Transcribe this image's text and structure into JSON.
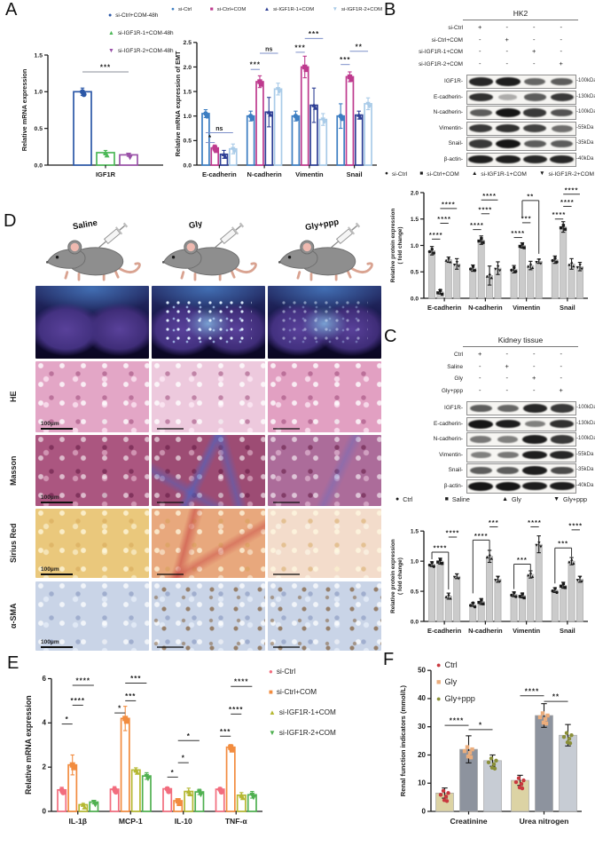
{
  "panels": {
    "a": "A",
    "b": "B",
    "c": "C",
    "d": "D",
    "e": "E",
    "f": "F"
  },
  "charts": {
    "a_left": {
      "type": "bar",
      "style": "hollow",
      "ylabel": "Relative mRNA  expression",
      "ylim": [
        0,
        1.5
      ],
      "yticks": [
        "0.0",
        "0.5",
        "1.0",
        "1.5"
      ],
      "categories": [
        "IGF1R"
      ],
      "series": [
        {
          "name": "si-Ctrl+COM-48h",
          "edge": "#2B57A7",
          "marker": "circle"
        },
        {
          "name": "si-IGF1R-1+COM-48h",
          "edge": "#4DB858",
          "marker": "triangle"
        },
        {
          "name": "si-IGF1R-2+COM-48h",
          "edge": "#9A52A8",
          "marker": "triangle-down"
        }
      ],
      "values": [
        [
          1.0
        ],
        [
          0.17
        ],
        [
          0.14
        ]
      ],
      "errors": [
        [
          0.05
        ],
        [
          0.03
        ],
        [
          0.02
        ]
      ],
      "sig": [
        {
          "group": 0,
          "from": 0,
          "to": 2,
          "y": 1.27,
          "label": "***"
        }
      ]
    },
    "a_right": {
      "type": "bar",
      "style": "hollow",
      "ylabel": "Relative mRNA expression of EMT",
      "ylim": [
        0,
        2.75
      ],
      "yticks": [
        "0.0",
        "0.5",
        "1.0",
        "1.5",
        "2.0",
        "2.5"
      ],
      "categories": [
        "E-cadherin",
        "N-cadherin",
        "Vimentin",
        "Snail"
      ],
      "series": [
        {
          "name": "si-Ctrl",
          "edge": "#3D7EC2",
          "marker": "circle"
        },
        {
          "name": "si-Ctrl+COM",
          "edge": "#BE3A8E",
          "marker": "square"
        },
        {
          "name": "si-IGF1R-1+COM",
          "edge": "#2E3F95",
          "marker": "triangle"
        },
        {
          "name": "si-IGF1R-2+COM",
          "edge": "#A9CBE8",
          "marker": "triangle-down"
        }
      ],
      "values": [
        [
          1.05,
          1.0,
          1.0,
          1.0
        ],
        [
          0.35,
          1.7,
          2.0,
          1.8
        ],
        [
          0.22,
          1.08,
          1.22,
          1.02
        ],
        [
          0.33,
          1.55,
          0.93,
          1.25
        ]
      ],
      "errors": [
        [
          0.08,
          0.1,
          0.1,
          0.25
        ],
        [
          0.06,
          0.12,
          0.22,
          0.1
        ],
        [
          0.08,
          0.3,
          0.35,
          0.08
        ],
        [
          0.1,
          0.12,
          0.12,
          0.12
        ]
      ],
      "sig": [
        {
          "group": 0,
          "from": 0,
          "to": 1,
          "y": 0.46,
          "label": "*"
        },
        {
          "group": 0,
          "from": 0,
          "to": 3,
          "y": 0.66,
          "label": "ns"
        },
        {
          "group": 1,
          "from": 0,
          "to": 1,
          "y": 1.95,
          "label": "***"
        },
        {
          "group": 1,
          "from": 1,
          "to": 3,
          "y": 2.28,
          "label": "ns"
        },
        {
          "group": 2,
          "from": 0,
          "to": 1,
          "y": 2.3,
          "label": "***"
        },
        {
          "group": 2,
          "from": 1,
          "to": 3,
          "y": 2.58,
          "label": "***"
        },
        {
          "group": 3,
          "from": 0,
          "to": 1,
          "y": 2.05,
          "label": "***"
        },
        {
          "group": 3,
          "from": 1,
          "to": 3,
          "y": 2.32,
          "label": "**"
        }
      ]
    },
    "b_chart": {
      "type": "bar",
      "style": "filled",
      "ylabel": "Relative protein expression\n( fold change)",
      "ylim": [
        0,
        2.05
      ],
      "yticks": [
        "0.0",
        "0.5",
        "1.0",
        "1.5",
        "2.0"
      ],
      "categories": [
        "E-cadherin",
        "N-cadherin",
        "Vimentin",
        "Snail"
      ],
      "series": [
        {
          "name": "si-Ctrl",
          "marker": "circle",
          "bar": "#cbcbcb",
          "mcolor": "#1a1a1a"
        },
        {
          "name": "si-Ctrl+COM",
          "marker": "square",
          "bar": "#cbcbcb",
          "mcolor": "#1a1a1a"
        },
        {
          "name": "si-IGF1R-1+COM",
          "marker": "triangle",
          "bar": "#cbcbcb",
          "mcolor": "#1a1a1a"
        },
        {
          "name": "si-IGF1R-2+COM",
          "marker": "triangle-down",
          "bar": "#cbcbcb",
          "mcolor": "#1a1a1a"
        }
      ],
      "values": [
        [
          0.9,
          0.57,
          0.55,
          0.73
        ],
        [
          0.12,
          1.1,
          1.0,
          1.35
        ],
        [
          0.73,
          0.43,
          0.62,
          0.65
        ],
        [
          0.65,
          0.57,
          0.7,
          0.6
        ]
      ],
      "errors": [
        [
          0.08,
          0.06,
          0.07,
          0.07
        ],
        [
          0.04,
          0.08,
          0.05,
          0.1
        ],
        [
          0.05,
          0.18,
          0.08,
          0.1
        ],
        [
          0.1,
          0.12,
          0.04,
          0.08
        ]
      ],
      "sig": [
        {
          "group": 0,
          "from": 0,
          "to": 1,
          "y": 1.12,
          "label": "****"
        },
        {
          "group": 0,
          "from": 1,
          "to": 2,
          "y": 1.42,
          "label": "****"
        },
        {
          "group": 0,
          "from": 1,
          "to": 3,
          "y": 1.7,
          "label": "****"
        },
        {
          "group": 1,
          "from": 0,
          "to": 1,
          "y": 1.3,
          "label": "****"
        },
        {
          "group": 1,
          "from": 1,
          "to": 2,
          "y": 1.6,
          "label": "****"
        },
        {
          "group": 1,
          "from": 1,
          "to": 3,
          "y": 1.86,
          "label": "****"
        },
        {
          "group": 2,
          "from": 0,
          "to": 1,
          "y": 1.15,
          "label": "****"
        },
        {
          "group": 2,
          "from": 1,
          "to": 2,
          "y": 1.43,
          "label": "***"
        },
        {
          "group": 2,
          "from": 1,
          "to": 3,
          "y": 1.85,
          "label": "**",
          "da": 20,
          "db": 60
        },
        {
          "group": 3,
          "from": 0,
          "to": 1,
          "y": 1.5,
          "label": "****"
        },
        {
          "group": 3,
          "from": 1,
          "to": 2,
          "y": 1.74,
          "label": "****"
        },
        {
          "group": 3,
          "from": 1,
          "to": 3,
          "y": 1.97,
          "label": "****"
        }
      ]
    },
    "c_chart": {
      "type": "bar",
      "style": "filled",
      "ylabel": "Relative protein expression\n( fold change)",
      "ylim": [
        0,
        1.68
      ],
      "yticks": [
        "0.0",
        "0.5",
        "1.0",
        "1.5"
      ],
      "categories": [
        "E-cadherin",
        "N-cadherin",
        "Vimentin",
        "Snail"
      ],
      "series": [
        {
          "name": "Ctrl",
          "marker": "circle",
          "bar": "#cbcbcb",
          "mcolor": "#1a1a1a"
        },
        {
          "name": "Saline",
          "marker": "square",
          "bar": "#cbcbcb",
          "mcolor": "#1a1a1a"
        },
        {
          "name": "Gly",
          "marker": "triangle",
          "bar": "#cbcbcb",
          "mcolor": "#1a1a1a"
        },
        {
          "name": "Gly+ppp",
          "marker": "triangle-down",
          "bar": "#cbcbcb",
          "mcolor": "#1a1a1a"
        }
      ],
      "values": [
        [
          0.95,
          0.28,
          0.45,
          0.52
        ],
        [
          1.0,
          0.33,
          0.43,
          0.6
        ],
        [
          0.42,
          1.08,
          0.78,
          1.0
        ],
        [
          0.75,
          0.7,
          1.28,
          0.7
        ]
      ],
      "errors": [
        [
          0.04,
          0.03,
          0.04,
          0.04
        ],
        [
          0.05,
          0.05,
          0.04,
          0.05
        ],
        [
          0.05,
          0.1,
          0.06,
          0.06
        ],
        [
          0.04,
          0.05,
          0.14,
          0.05
        ]
      ],
      "sig": [
        {
          "group": 0,
          "from": 0,
          "to": 2,
          "y": 1.15,
          "label": "****",
          "da": 8,
          "db": 42
        },
        {
          "group": 0,
          "from": 2,
          "to": 3,
          "y": 1.4,
          "label": "****"
        },
        {
          "group": 1,
          "from": 0,
          "to": 2,
          "y": 1.35,
          "label": "****",
          "da": 60,
          "db": 12
        },
        {
          "group": 1,
          "from": 2,
          "to": 3,
          "y": 1.57,
          "label": "***"
        },
        {
          "group": 2,
          "from": 0,
          "to": 2,
          "y": 0.95,
          "label": "***",
          "da": 28,
          "db": 8
        },
        {
          "group": 2,
          "from": 2,
          "to": 3,
          "y": 1.57,
          "label": "****"
        },
        {
          "group": 3,
          "from": 0,
          "to": 2,
          "y": 1.22,
          "label": "***",
          "da": 40,
          "db": 10
        },
        {
          "group": 3,
          "from": 2,
          "to": 3,
          "y": 1.52,
          "label": "****"
        }
      ]
    },
    "e_chart": {
      "type": "bar",
      "style": "hollow",
      "ylabel": "Relative mRNA expression",
      "ylim": [
        0,
        6.1
      ],
      "yticks": [
        "0",
        "2",
        "4",
        "6"
      ],
      "categories": [
        "IL-1β",
        "MCP-1",
        "IL-10",
        "TNF-α"
      ],
      "series": [
        {
          "name": "si-Ctrl",
          "edge": "#F26D7E",
          "marker": "circle"
        },
        {
          "name": "si-Ctrl+COM",
          "edge": "#F28C3F",
          "marker": "square"
        },
        {
          "name": "si-IGF1R-1+COM",
          "edge": "#B5B832",
          "marker": "triangle"
        },
        {
          "name": "si-IGF1R-2+COM",
          "edge": "#4FB050",
          "marker": "triangle-down"
        }
      ],
      "values": [
        [
          0.97,
          1.0,
          1.02,
          1.0
        ],
        [
          2.1,
          4.2,
          0.48,
          2.9
        ],
        [
          0.3,
          1.87,
          0.9,
          0.73
        ],
        [
          0.42,
          1.6,
          0.88,
          0.75
        ]
      ],
      "errors": [
        [
          0.12,
          0.12,
          0.08,
          0.08
        ],
        [
          0.45,
          0.55,
          0.08,
          0.12
        ],
        [
          0.06,
          0.1,
          0.15,
          0.12
        ],
        [
          0.08,
          0.15,
          0.12,
          0.15
        ]
      ],
      "sig": [
        {
          "group": 0,
          "from": 0,
          "to": 1,
          "y": 3.95,
          "label": "*"
        },
        {
          "group": 0,
          "from": 1,
          "to": 2,
          "y": 4.8,
          "label": "****"
        },
        {
          "group": 0,
          "from": 1,
          "to": 3,
          "y": 5.7,
          "label": "****"
        },
        {
          "group": 1,
          "from": 0,
          "to": 1,
          "y": 4.45,
          "label": "*"
        },
        {
          "group": 1,
          "from": 1,
          "to": 2,
          "y": 5.0,
          "label": "***"
        },
        {
          "group": 1,
          "from": 1,
          "to": 3,
          "y": 5.8,
          "label": "***"
        },
        {
          "group": 2,
          "from": 0,
          "to": 1,
          "y": 1.55,
          "label": "*"
        },
        {
          "group": 2,
          "from": 1,
          "to": 2,
          "y": 2.2,
          "label": "*"
        },
        {
          "group": 2,
          "from": 1,
          "to": 3,
          "y": 3.2,
          "label": "*"
        },
        {
          "group": 3,
          "from": 0,
          "to": 1,
          "y": 3.4,
          "label": "***"
        },
        {
          "group": 3,
          "from": 1,
          "to": 2,
          "y": 4.4,
          "label": "****"
        },
        {
          "group": 3,
          "from": 1,
          "to": 3,
          "y": 5.65,
          "label": "****"
        }
      ]
    },
    "f_chart": {
      "type": "bar",
      "style": "filled",
      "ylabel": "Renal function indicators (mmol/L)",
      "ylim": [
        0,
        51
      ],
      "yticks": [
        "0",
        "10",
        "20",
        "30",
        "40",
        "50"
      ],
      "categories": [
        "Creatinine",
        "Urea nitrogen"
      ],
      "series": [
        {
          "name": "Ctrl",
          "marker": "circle",
          "bar": "#DCD3A4",
          "mcolor": "#C9393F"
        },
        {
          "name": "Gly",
          "marker": "square",
          "bar": "#8D939E",
          "mcolor": "#EBAD7C"
        },
        {
          "name": "Gly+ppp",
          "marker": "circle",
          "bar": "#C7CCD4",
          "mcolor": "#8A8F39"
        }
      ],
      "values": [
        [
          6.5,
          11
        ],
        [
          22,
          34
        ],
        [
          18,
          27
        ]
      ],
      "errors": [
        [
          1.8,
          1.8
        ],
        [
          4.8,
          4.2
        ],
        [
          2.0,
          3.8
        ]
      ],
      "sig": [
        {
          "group": 0,
          "from": 0,
          "to": 1,
          "y": 30.5,
          "label": "****"
        },
        {
          "group": 0,
          "from": 1,
          "to": 2,
          "y": 29,
          "label": "*"
        },
        {
          "group": 1,
          "from": 0,
          "to": 1,
          "y": 41,
          "label": "****"
        },
        {
          "group": 1,
          "from": 1,
          "to": 2,
          "y": 39,
          "label": "**"
        }
      ]
    }
  },
  "blots": {
    "b_blot": {
      "title": "HK2",
      "conditions": [
        {
          "label": "si-Ctrl",
          "marks": [
            "+",
            "-",
            "-",
            "-"
          ]
        },
        {
          "label": "si-Ctrl+COM",
          "marks": [
            "-",
            "+",
            "-",
            "-"
          ]
        },
        {
          "label": "si-IGF1R-1+COM",
          "marks": [
            "-",
            "-",
            "+",
            "-"
          ]
        },
        {
          "label": "si-IGF1R-2+COM",
          "marks": [
            "-",
            "-",
            "-",
            "+"
          ]
        }
      ],
      "bands": [
        {
          "label": "IGF1R-",
          "weight": "-100kDa",
          "intensity": [
            0.9,
            0.95,
            0.55,
            0.6
          ]
        },
        {
          "label": "E-cadherin-",
          "weight": "-130kDa",
          "intensity": [
            0.85,
            0.15,
            0.6,
            0.8
          ]
        },
        {
          "label": "N-cadherin-",
          "weight": "-100kDa",
          "intensity": [
            0.6,
            1.0,
            0.8,
            0.65
          ]
        },
        {
          "label": "Vimentin-",
          "weight": "-55kDa",
          "intensity": [
            0.8,
            0.85,
            0.75,
            0.5
          ]
        },
        {
          "label": "Snail-",
          "weight": "-35kDa",
          "intensity": [
            0.8,
            1.0,
            0.6,
            0.6
          ]
        },
        {
          "label": "β-actin-",
          "weight": "-40kDa",
          "intensity": [
            0.95,
            0.95,
            0.9,
            0.9
          ]
        }
      ]
    },
    "c_blot": {
      "title": "Kidney tissue",
      "conditions": [
        {
          "label": "Ctrl",
          "marks": [
            "+",
            "-",
            "-",
            "-"
          ]
        },
        {
          "label": "Saline",
          "marks": [
            "-",
            "+",
            "-",
            "-"
          ]
        },
        {
          "label": "Gly",
          "marks": [
            "-",
            "-",
            "+",
            "-"
          ]
        },
        {
          "label": "Gly+ppp",
          "marks": [
            "-",
            "-",
            "-",
            "+"
          ]
        }
      ],
      "bands": [
        {
          "label": "IGF1R-",
          "weight": "-100kDa",
          "intensity": [
            0.6,
            0.55,
            0.9,
            0.8
          ]
        },
        {
          "label": "E-cadherin-",
          "weight": "-130kDa",
          "intensity": [
            1.0,
            0.95,
            0.4,
            0.85
          ]
        },
        {
          "label": "N-cadherin-",
          "weight": "-100kDa",
          "intensity": [
            0.45,
            0.4,
            0.95,
            0.8
          ]
        },
        {
          "label": "Vimentin-",
          "weight": "-55kDa",
          "intensity": [
            0.4,
            0.45,
            0.95,
            0.9
          ]
        },
        {
          "label": "Snail-",
          "weight": "-35kDa",
          "intensity": [
            0.6,
            0.6,
            0.95,
            0.7
          ]
        },
        {
          "label": "β-actin-",
          "weight": "-40kDa",
          "intensity": [
            1.0,
            1.0,
            0.95,
            0.95
          ]
        }
      ]
    }
  },
  "panel_d": {
    "mice": [
      {
        "label": "Saline"
      },
      {
        "label": "Gly"
      },
      {
        "label": "Gly+ppp"
      }
    ],
    "stain_rows": [
      {
        "label": "HE"
      },
      {
        "label": "Masson"
      },
      {
        "label": "Sirius Red"
      },
      {
        "label": "α-SMA"
      }
    ],
    "scale_label": "100μm"
  }
}
